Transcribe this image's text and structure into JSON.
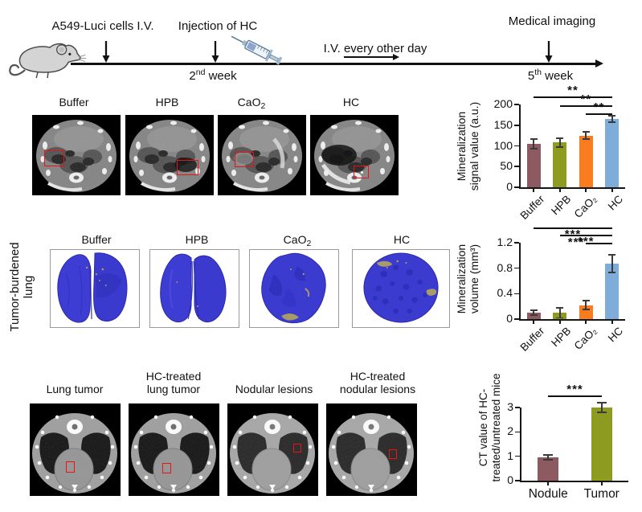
{
  "figure": {
    "timeline": {
      "cells_label": "A549-Luci cells I.V.",
      "injection_label": "Injection of HC",
      "iv_label": "I.V. every other day",
      "imaging_label": "Medical imaging",
      "week2_base": "2",
      "week2_sup": "nd",
      "week2_rest": " week",
      "week5_base": "5",
      "week5_sup": "th",
      "week5_rest": " week"
    },
    "row1_labels": [
      {
        "main": "Buffer",
        "sub": ""
      },
      {
        "main": "HPB",
        "sub": ""
      },
      {
        "main": "CaO",
        "sub": "2"
      },
      {
        "main": "HC",
        "sub": ""
      }
    ],
    "row2_side_line1": "Tumor-burdened",
    "row2_side_line2": "lung",
    "row2_labels": [
      {
        "main": "Buffer",
        "sub": ""
      },
      {
        "main": "HPB",
        "sub": ""
      },
      {
        "main": "CaO",
        "sub": "2"
      },
      {
        "main": "HC",
        "sub": ""
      }
    ],
    "row3_labels": [
      {
        "line1": "Lung tumor",
        "line2": ""
      },
      {
        "line1": "HC-treated",
        "line2": "lung tumor"
      },
      {
        "line1": "Nodular lesions",
        "line2": ""
      },
      {
        "line1": "HC-treated",
        "line2": "nodular lesions"
      }
    ]
  },
  "chart_data": [
    {
      "type": "bar",
      "ylabel_lines": [
        "Mineralization",
        "signal value (a.u.)"
      ],
      "categories": [
        "Buffer",
        "HPB",
        "CaO₂",
        "HC"
      ],
      "values": [
        105,
        108,
        125,
        165
      ],
      "errors": [
        12,
        11,
        9,
        8
      ],
      "bar_colors": [
        "#8c5a60",
        "#8e9b21",
        "#f97c1e",
        "#7fadda"
      ],
      "ylim": [
        0,
        200
      ],
      "yticks": [
        {
          "v": 0,
          "label": "0"
        },
        {
          "v": 50,
          "label": "50"
        },
        {
          "v": 100,
          "label": "100"
        },
        {
          "v": 150,
          "label": "150"
        },
        {
          "v": 200,
          "label": "200"
        }
      ],
      "grid": false,
      "annotations": [
        {
          "from": 0,
          "to": 3,
          "label": "**",
          "row": 0,
          "label_pos": "above"
        },
        {
          "from": 1,
          "to": 3,
          "label": "**",
          "row": 1,
          "label_pos": "above"
        },
        {
          "from": 2,
          "to": 3,
          "label": "**",
          "row": 2,
          "label_pos": "above"
        }
      ]
    },
    {
      "type": "bar",
      "ylabel_lines": [
        "Mineralization",
        "volume (mm³)"
      ],
      "categories": [
        "Buffer",
        "HPB",
        "CaO₂",
        "HC"
      ],
      "values": [
        0.1,
        0.1,
        0.22,
        0.87
      ],
      "errors": [
        0.04,
        0.08,
        0.07,
        0.14
      ],
      "bar_colors": [
        "#8c5a60",
        "#8e9b21",
        "#f97c1e",
        "#7fadda"
      ],
      "ylim": [
        0,
        1.2
      ],
      "yticks": [
        {
          "v": 0,
          "label": "0"
        },
        {
          "v": 0.4,
          "label": "0.4"
        },
        {
          "v": 0.8,
          "label": "0.8"
        },
        {
          "v": 1.2,
          "label": "1.2"
        }
      ],
      "grid": false,
      "annotations": [
        {
          "from": 0,
          "to": 3,
          "label": "***",
          "row": 0,
          "label_pos": "below"
        },
        {
          "from": 1,
          "to": 3,
          "label": "***",
          "row": 1,
          "label_pos": "below"
        },
        {
          "from": 2,
          "to": 3,
          "label": "***",
          "row": 2,
          "label_pos": "left"
        }
      ]
    },
    {
      "type": "bar",
      "ylabel_lines": [
        "CT value of HC-",
        "treated/untreated mice"
      ],
      "categories": [
        "Nodule",
        "Tumor"
      ],
      "values": [
        0.95,
        3.0
      ],
      "errors": [
        0.1,
        0.2
      ],
      "bar_colors": [
        "#8c5a60",
        "#8e9b21"
      ],
      "ylim": [
        0,
        3
      ],
      "yticks": [
        {
          "v": 0,
          "label": "0"
        },
        {
          "v": 1,
          "label": "1"
        },
        {
          "v": 2,
          "label": "2"
        },
        {
          "v": 3,
          "label": "3"
        }
      ],
      "grid": false,
      "annotations": [
        {
          "from": 0,
          "to": 1,
          "label": "***",
          "row": 0,
          "label_pos": "above"
        }
      ]
    }
  ]
}
